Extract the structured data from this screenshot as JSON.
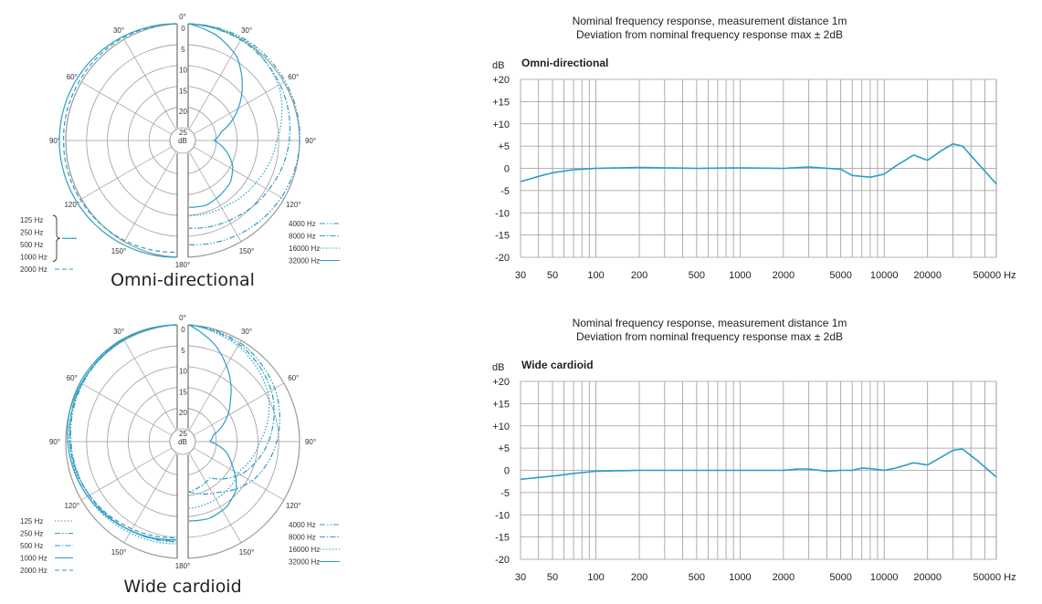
{
  "colors": {
    "curve": "#2a9ec4",
    "grid": "#9a9a9a",
    "text": "#222222"
  },
  "polar_labels": {
    "angles": [
      "0°",
      "30°",
      "60°",
      "90°",
      "120°",
      "150°",
      "180°",
      "150°",
      "120°",
      "90°",
      "60°",
      "30°"
    ],
    "rings": [
      "0",
      "5",
      "10",
      "15",
      "20",
      "25"
    ],
    "unit": "dB"
  },
  "freq_header": {
    "line1": "Nominal frequency response, measurement distance 1m",
    "line2": "Deviation from nominal frequency response max ± 2dB",
    "db_unit": "dB",
    "hz_unit": "Hz"
  },
  "chart_data": [
    {
      "type": "line",
      "subtype": "polar",
      "title": "Omni-directional",
      "rlim": [
        0,
        25
      ],
      "theta_ticks": [
        0,
        30,
        60,
        90,
        120,
        150,
        180
      ],
      "legend_left": [
        {
          "label": "125 Hz",
          "style": "solid",
          "group": 1
        },
        {
          "label": "250 Hz",
          "style": "solid",
          "group": 1
        },
        {
          "label": "500 Hz",
          "style": "solid",
          "group": 1
        },
        {
          "label": "1000 Hz",
          "style": "solid",
          "group": 1
        },
        {
          "label": "2000 Hz",
          "style": "dash"
        }
      ],
      "legend_right": [
        {
          "label": "4000 Hz",
          "style": "dashdotdot"
        },
        {
          "label": "8000 Hz",
          "style": "dashdot"
        },
        {
          "label": "16000 Hz",
          "style": "dot"
        },
        {
          "label": "32000 Hz",
          "style": "solid"
        }
      ],
      "series_left": [
        {
          "name": "125-1000 Hz",
          "style": "solid",
          "theta": [
            0,
            30,
            60,
            90,
            120,
            150,
            180
          ],
          "db": [
            0,
            0,
            0,
            0,
            0,
            0,
            0
          ]
        },
        {
          "name": "2000 Hz",
          "style": "dash",
          "theta": [
            0,
            30,
            60,
            90,
            120,
            150,
            180
          ],
          "db": [
            0,
            0.3,
            0.8,
            1,
            1,
            1,
            1.2
          ]
        }
      ],
      "series_right": [
        {
          "name": "4000 Hz",
          "style": "dashdotdot",
          "theta": [
            0,
            30,
            60,
            90,
            120,
            150,
            180
          ],
          "db": [
            0,
            0.3,
            1,
            1.5,
            2,
            2.5,
            3
          ]
        },
        {
          "name": "8000 Hz",
          "style": "dashdot",
          "theta": [
            0,
            30,
            60,
            90,
            120,
            150,
            180
          ],
          "db": [
            0,
            1,
            2.5,
            4,
            5.5,
            6.5,
            7
          ]
        },
        {
          "name": "16000 Hz",
          "style": "dot",
          "theta": [
            0,
            30,
            60,
            90,
            120,
            150,
            180
          ],
          "db": [
            0,
            0.5,
            3,
            7,
            9,
            10,
            10
          ]
        },
        {
          "name": "32000 Hz",
          "style": "solid",
          "theta": [
            0,
            15,
            30,
            45,
            60,
            75,
            90,
            105,
            120,
            135,
            150,
            165,
            180
          ],
          "db": [
            0,
            2,
            5,
            10,
            15,
            20,
            22,
            19,
            16,
            14,
            13,
            12,
            12
          ]
        }
      ]
    },
    {
      "type": "line",
      "xscale": "log",
      "title": "Omni-directional",
      "xlabel": "Hz",
      "ylabel": "dB",
      "xlim": [
        30,
        60000
      ],
      "ylim": [
        -20,
        20
      ],
      "x_ticks": [
        30,
        50,
        100,
        200,
        500,
        1000,
        2000,
        5000,
        10000,
        20000,
        50000
      ],
      "x_tick_labels": [
        "30",
        "50",
        "100",
        "200",
        "500",
        "1000",
        "2000",
        "5000",
        "10000",
        "20000",
        "50000 Hz"
      ],
      "y_ticks": [
        "+20",
        "+15",
        "+10",
        "+5",
        "0",
        "-5",
        "-10",
        "-15",
        "-20"
      ],
      "y_tick_values": [
        20,
        15,
        10,
        5,
        0,
        -5,
        -10,
        -15,
        -20
      ],
      "series": [
        {
          "x": [
            30,
            40,
            50,
            70,
            100,
            200,
            500,
            1000,
            2000,
            3000,
            5000,
            6000,
            8000,
            10000,
            12000,
            16000,
            20000,
            25000,
            30000,
            35000,
            45000,
            60000
          ],
          "y": [
            -3,
            -1.8,
            -1,
            -0.3,
            0,
            0.2,
            0,
            0.1,
            0,
            0.3,
            -0.2,
            -1.6,
            -2,
            -1.3,
            0.5,
            3,
            1.8,
            4,
            5.5,
            5,
            1,
            -3.5
          ]
        }
      ]
    },
    {
      "type": "line",
      "subtype": "polar",
      "title": "Wide cardioid",
      "rlim": [
        0,
        25
      ],
      "theta_ticks": [
        0,
        30,
        60,
        90,
        120,
        150,
        180
      ],
      "legend_left": [
        {
          "label": "125 Hz",
          "style": "dot"
        },
        {
          "label": "250 Hz",
          "style": "dashdotdot"
        },
        {
          "label": "500 Hz",
          "style": "dashdot"
        },
        {
          "label": "1000 Hz",
          "style": "solid"
        },
        {
          "label": "2000 Hz",
          "style": "dash"
        }
      ],
      "legend_right": [
        {
          "label": "4000 Hz",
          "style": "dashdotdot"
        },
        {
          "label": "8000 Hz",
          "style": "dashdot"
        },
        {
          "label": "16000 Hz",
          "style": "dot"
        },
        {
          "label": "32000 Hz",
          "style": "solid"
        }
      ],
      "series_left": [
        {
          "name": "125 Hz",
          "style": "dot",
          "theta": [
            0,
            30,
            60,
            90,
            120,
            150,
            180
          ],
          "db": [
            0,
            0.5,
            1.5,
            2.5,
            3,
            3.5,
            3.5
          ]
        },
        {
          "name": "250 Hz",
          "style": "dashdotdot",
          "theta": [
            0,
            30,
            60,
            90,
            120,
            150,
            180
          ],
          "db": [
            0,
            0.6,
            1.7,
            2.8,
            3.5,
            4,
            4
          ]
        },
        {
          "name": "500 Hz",
          "style": "dashdot",
          "theta": [
            0,
            30,
            60,
            90,
            120,
            150,
            180
          ],
          "db": [
            0,
            0.5,
            1.5,
            2.5,
            3.5,
            4,
            4.2
          ]
        },
        {
          "name": "1000 Hz",
          "style": "solid",
          "theta": [
            0,
            30,
            60,
            90,
            120,
            150,
            180
          ],
          "db": [
            0,
            0.3,
            1,
            2,
            3,
            4,
            4.5
          ]
        },
        {
          "name": "2000 Hz",
          "style": "dash",
          "theta": [
            0,
            30,
            60,
            90,
            120,
            150,
            180
          ],
          "db": [
            0,
            0.5,
            1.5,
            2.5,
            3.5,
            4.5,
            5
          ]
        }
      ],
      "series_right": [
        {
          "name": "4000 Hz",
          "style": "dashdotdot",
          "theta": [
            0,
            30,
            60,
            90,
            120,
            150,
            180
          ],
          "db": [
            0,
            1.5,
            4,
            7,
            10,
            14,
            16
          ]
        },
        {
          "name": "8000 Hz",
          "style": "dashdot",
          "theta": [
            0,
            30,
            60,
            90,
            120,
            150,
            180
          ],
          "db": [
            0,
            2,
            5,
            9,
            13,
            18,
            16
          ]
        },
        {
          "name": "16000 Hz",
          "style": "dot",
          "theta": [
            0,
            30,
            60,
            90,
            120,
            150,
            180
          ],
          "db": [
            0,
            2.5,
            6,
            11,
            14,
            13,
            12
          ]
        },
        {
          "name": "32000 Hz",
          "style": "solid",
          "theta": [
            0,
            15,
            30,
            45,
            60,
            75,
            90,
            105,
            120,
            135,
            150,
            165,
            180
          ],
          "db": [
            0,
            4,
            9,
            14,
            18,
            22,
            23,
            19,
            16,
            12,
            10,
            9,
            9
          ]
        }
      ]
    },
    {
      "type": "line",
      "xscale": "log",
      "title": "Wide cardioid",
      "xlabel": "Hz",
      "ylabel": "dB",
      "xlim": [
        30,
        60000
      ],
      "ylim": [
        -20,
        20
      ],
      "x_ticks": [
        30,
        50,
        100,
        200,
        500,
        1000,
        2000,
        5000,
        10000,
        20000,
        50000
      ],
      "x_tick_labels": [
        "30",
        "50",
        "100",
        "200",
        "500",
        "1000",
        "2000",
        "5000",
        "10000",
        "20000",
        "50000 Hz"
      ],
      "y_ticks": [
        "+20",
        "+15",
        "+10",
        "+5",
        "0",
        "-5",
        "-10",
        "-15",
        "-20"
      ],
      "y_tick_values": [
        20,
        15,
        10,
        5,
        0,
        -5,
        -10,
        -15,
        -20
      ],
      "series": [
        {
          "x": [
            30,
            50,
            70,
            100,
            200,
            500,
            1000,
            2000,
            2500,
            3000,
            4000,
            5000,
            6000,
            7000,
            8000,
            10000,
            12000,
            16000,
            20000,
            25000,
            30000,
            35000,
            45000,
            60000
          ],
          "y": [
            -2,
            -1.3,
            -0.7,
            -0.2,
            0,
            0,
            0,
            0,
            0.3,
            0.3,
            -0.2,
            0,
            0,
            0.5,
            0.4,
            0,
            0.5,
            1.7,
            1.2,
            3,
            4.5,
            4.8,
            2,
            -1.5
          ]
        }
      ]
    }
  ]
}
